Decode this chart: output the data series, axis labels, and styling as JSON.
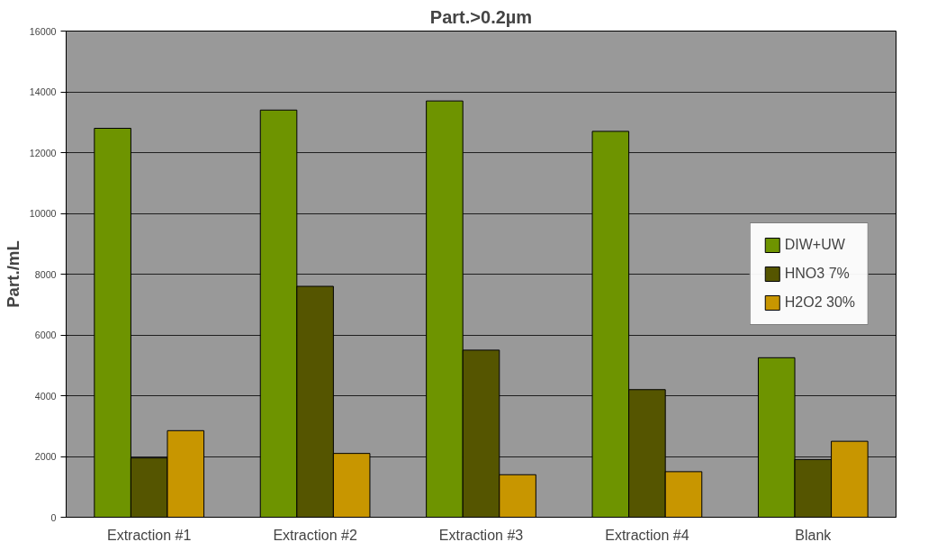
{
  "chart_data": {
    "type": "bar",
    "title": "Part.>0.2µm",
    "ylabel": "Part./mL",
    "categories": [
      "Extraction #1",
      "Extraction #2",
      "Extraction #3",
      "Extraction #4",
      "Blank"
    ],
    "series": [
      {
        "name": "DIW+UW",
        "color": "#6e9400",
        "values": [
          12800,
          13400,
          13700,
          12700,
          5250
        ]
      },
      {
        "name": "HNO3 7%",
        "color": "#555500",
        "values": [
          1950,
          7600,
          5500,
          4200,
          1900
        ]
      },
      {
        "name": "H2O2 30%",
        "color": "#c89600",
        "values": [
          2850,
          2100,
          1400,
          1500,
          2500
        ]
      }
    ],
    "ylim": [
      0,
      16000
    ],
    "yticks": [
      0,
      2000,
      4000,
      6000,
      8000,
      10000,
      12000,
      14000,
      16000
    ],
    "grid": "y",
    "legend": "right"
  }
}
